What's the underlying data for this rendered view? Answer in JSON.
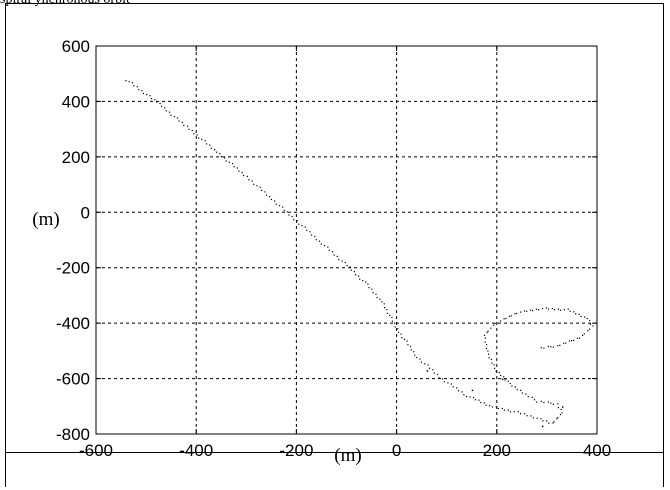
{
  "header": {
    "text": "spiral ynchronous orbit"
  },
  "chart_data": {
    "type": "scatter",
    "title": "",
    "xlabel": "(m)",
    "ylabel": "(m)",
    "xlim": [
      -600,
      400
    ],
    "ylim": [
      -800,
      600
    ],
    "xticks": [
      -600,
      -400,
      -200,
      0,
      200,
      400
    ],
    "yticks": [
      600,
      400,
      200,
      0,
      -200,
      -400,
      -600,
      -800
    ],
    "xtick_labels": [
      "-600",
      "-400",
      "-200",
      "0",
      "200",
      "400"
    ],
    "ytick_labels": [
      "600",
      "400",
      "200",
      "0",
      "-200",
      "-400",
      "-600",
      "-800"
    ],
    "grid": true,
    "grid_style": "dashed",
    "series": [
      {
        "marker": "dot",
        "color": "#000000",
        "trajectory_knots": [
          [
            -540,
            480
          ],
          [
            -480,
            400
          ],
          [
            -420,
            310
          ],
          [
            -360,
            220
          ],
          [
            -300,
            130
          ],
          [
            -250,
            50
          ],
          [
            -200,
            -30
          ],
          [
            -150,
            -110
          ],
          [
            -100,
            -190
          ],
          [
            -60,
            -260
          ],
          [
            -30,
            -320
          ],
          [
            0,
            -420
          ],
          [
            40,
            -520
          ],
          [
            90,
            -600
          ],
          [
            140,
            -660
          ],
          [
            190,
            -700
          ],
          [
            240,
            -720
          ],
          [
            280,
            -740
          ],
          [
            310,
            -760
          ],
          [
            330,
            -720
          ],
          [
            320,
            -690
          ],
          [
            280,
            -680
          ],
          [
            250,
            -650
          ],
          [
            220,
            -610
          ],
          [
            195,
            -560
          ],
          [
            180,
            -500
          ],
          [
            175,
            -440
          ],
          [
            195,
            -400
          ],
          [
            240,
            -360
          ],
          [
            290,
            -345
          ],
          [
            340,
            -350
          ],
          [
            380,
            -380
          ],
          [
            390,
            -410
          ],
          [
            365,
            -450
          ],
          [
            320,
            -480
          ],
          [
            280,
            -490
          ]
        ],
        "extra_points": [
          [
            60,
            -570
          ],
          [
            210,
            -600
          ],
          [
            150,
            -640
          ],
          [
            330,
            -700
          ],
          [
            290,
            -770
          ]
        ]
      }
    ]
  }
}
